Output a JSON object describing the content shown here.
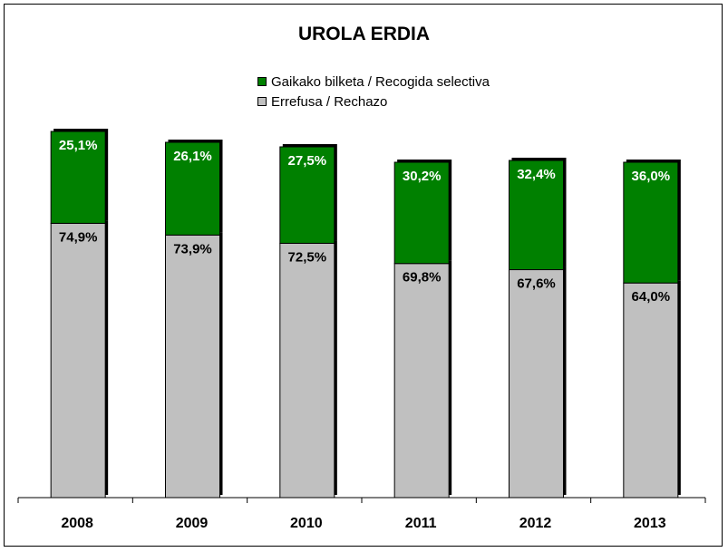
{
  "chart_data": {
    "type": "bar",
    "stacked": true,
    "title": "UROLA ERDIA",
    "categories": [
      "2008",
      "2009",
      "2010",
      "2011",
      "2012",
      "2013"
    ],
    "series": [
      {
        "name": "Errefusa / Rechazo",
        "values": [
          74.9,
          73.9,
          72.5,
          69.8,
          67.6,
          64.0
        ],
        "labels": [
          "74,9%",
          "73,9%",
          "72,5%",
          "69,8%",
          "67,6%",
          "64,0%"
        ],
        "color": "#c0c0c0",
        "label_color": "#000000"
      },
      {
        "name": "Gaikako bilketa / Recogida selectiva",
        "values": [
          25.1,
          26.1,
          27.5,
          30.2,
          32.4,
          36.0
        ],
        "labels": [
          "25,1%",
          "26,1%",
          "27,5%",
          "30,2%",
          "32,4%",
          "36,0%"
        ],
        "color": "#008000",
        "label_color": "#ffffff"
      }
    ],
    "legend_order": [
      1,
      0
    ],
    "legend_position": "top",
    "ylim": [
      0,
      100
    ],
    "grid": false
  }
}
